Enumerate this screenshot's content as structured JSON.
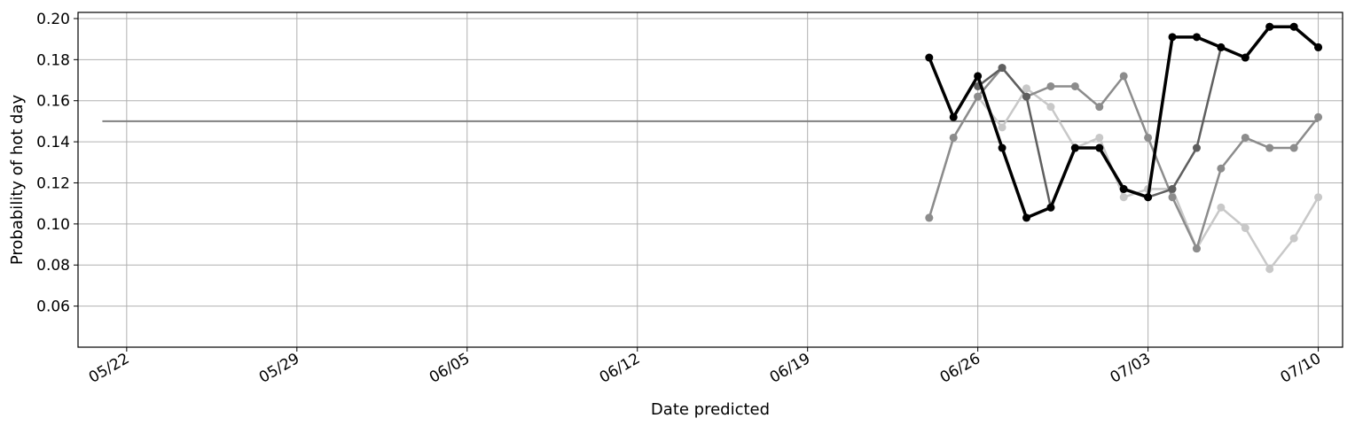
{
  "chart_data": {
    "type": "line",
    "xlabel": "Date predicted",
    "ylabel": "Probability of hot day",
    "xlim": [
      "05/20",
      "07/11"
    ],
    "ylim": [
      0.04,
      0.203
    ],
    "grid": true,
    "x_ticks": [
      "05/22",
      "05/29",
      "06/05",
      "06/12",
      "06/19",
      "06/26",
      "07/03",
      "07/10"
    ],
    "y_ticks": [
      "0.06",
      "0.08",
      "0.10",
      "0.12",
      "0.14",
      "0.16",
      "0.18",
      "0.20"
    ],
    "reference_line": {
      "x": [
        "05/21",
        "07/10"
      ],
      "y": [
        0.15,
        0.15
      ],
      "color": "#808080"
    },
    "series": [
      {
        "color": "#c8c8c8",
        "x": [
          "06/24",
          "06/25",
          "06/26",
          "06/27",
          "06/28",
          "06/29",
          "06/30",
          "07/01",
          "07/02",
          "07/03",
          "07/04",
          "07/05",
          "07/06",
          "07/07",
          "07/08",
          "07/09",
          "07/10"
        ],
        "values": [
          0.103,
          0.142,
          0.162,
          0.147,
          0.166,
          0.157,
          0.137,
          0.142,
          0.113,
          0.117,
          0.117,
          0.088,
          0.108,
          0.098,
          0.078,
          0.093,
          0.113
        ]
      },
      {
        "color": "#8c8c8c",
        "x": [
          "06/24",
          "06/25",
          "06/26",
          "06/27",
          "06/28",
          "06/29",
          "06/30",
          "07/01",
          "07/02",
          "07/03",
          "07/04",
          "07/05",
          "07/06",
          "07/07",
          "07/08",
          "07/09",
          "07/10"
        ],
        "values": [
          0.103,
          0.142,
          0.162,
          0.176,
          0.162,
          0.167,
          0.167,
          0.157,
          0.172,
          0.142,
          0.113,
          0.088,
          0.127,
          0.142,
          0.137,
          0.137,
          0.152
        ]
      },
      {
        "color": "#5f5f5f",
        "x": [
          "06/26",
          "06/27",
          "06/28",
          "06/29",
          "06/30",
          "07/01",
          "07/02",
          "07/03",
          "07/04",
          "07/05",
          "07/06",
          "07/07",
          "07/08",
          "07/09",
          "07/10"
        ],
        "values": [
          0.167,
          0.176,
          0.162,
          0.108,
          0.137,
          0.137,
          0.117,
          0.113,
          0.117,
          0.137,
          0.186,
          0.181,
          0.196,
          0.196,
          0.186
        ]
      },
      {
        "color": "#000000",
        "x": [
          "06/24",
          "06/25",
          "06/26",
          "06/27",
          "06/28",
          "06/29",
          "06/30",
          "07/01",
          "07/02",
          "07/03",
          "07/04",
          "07/05",
          "07/06",
          "07/07",
          "07/08",
          "07/09",
          "07/10"
        ],
        "values": [
          0.181,
          0.152,
          0.172,
          0.137,
          0.103,
          0.108,
          0.137,
          0.137,
          0.117,
          0.113,
          0.191,
          0.191,
          0.186,
          0.181,
          0.196,
          0.196,
          0.186
        ]
      }
    ]
  }
}
